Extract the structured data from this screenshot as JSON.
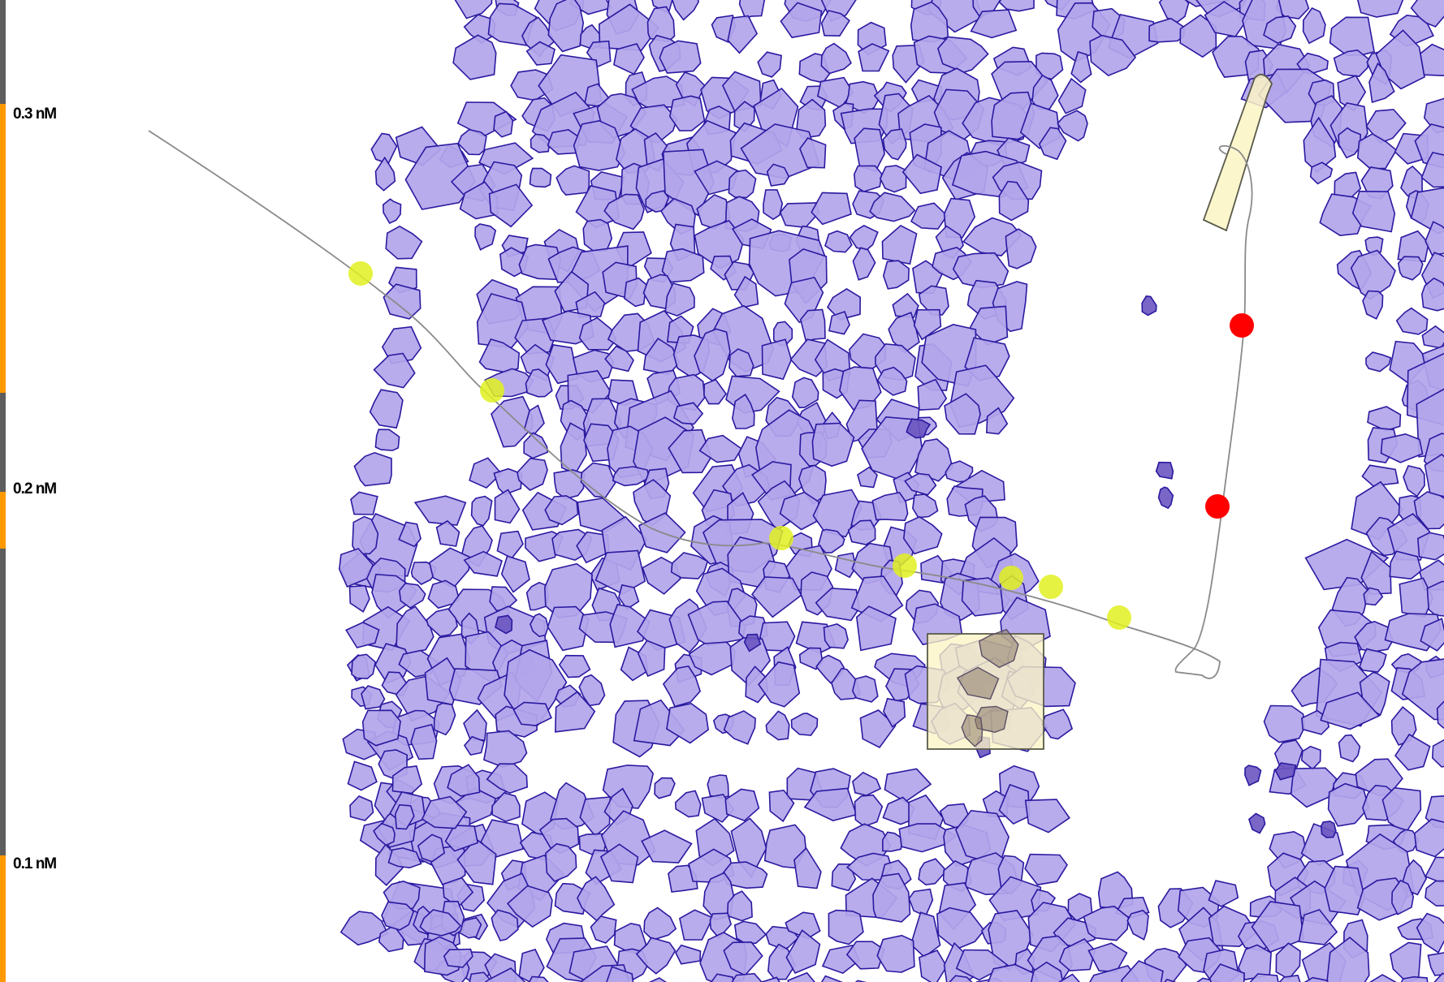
{
  "scale": {
    "labels": [
      "0.3 nM",
      "0.2 nM",
      "0.1 nM"
    ],
    "bar_color": "#5e5e5e",
    "accent_color": "#ff9900"
  },
  "colors": {
    "cell_fill": "#b3a5ea",
    "cell_stroke": "#2a1aa0",
    "cell_dark": "#6a55c0",
    "path": "#8a8a8a",
    "marker_yellow": "#e0f020",
    "marker_red": "#ff0000",
    "highlight_fill": "#fbf5c4",
    "highlight_stroke": "#5a5a4a"
  },
  "icons": {
    "yellow_marker": "marker-yellow-icon",
    "red_marker": "marker-red-icon"
  }
}
